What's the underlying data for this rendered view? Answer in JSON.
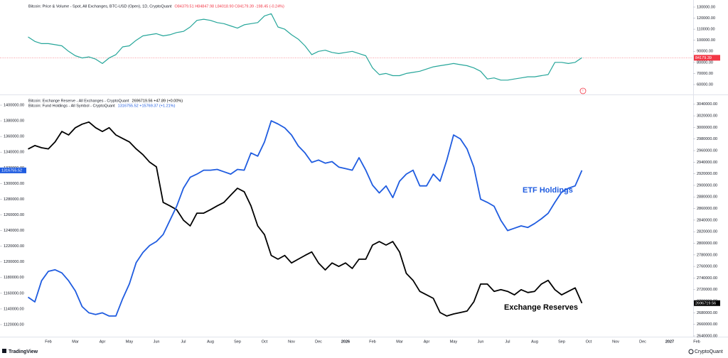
{
  "chart_data": [
    {
      "type": "line",
      "title": "Bitcoin: Price & Volume - Spot, All Exchanges, BTC-USD (Open), 1D, CryptoQuant",
      "ohlc": "O84379.51 H84847.98 L84018.90 C84179.39 -198.45 (-0.24%)",
      "color": "#26a69a",
      "last_value": 84179.39,
      "last_color": "#f23645",
      "ylim": [
        51650,
        133200
      ],
      "yticks": [
        {
          "value": 60000,
          "label": "60000.00"
        },
        {
          "value": 70000,
          "label": "70000.00"
        },
        {
          "value": 80000,
          "label": "80000.00"
        },
        {
          "value": 90000,
          "label": "90000.00"
        },
        {
          "value": 100000,
          "label": "100000.00"
        },
        {
          "value": 110000,
          "label": "110000.00"
        },
        {
          "value": 120000,
          "label": "120000.00"
        },
        {
          "value": 130000,
          "label": "130000.00"
        }
      ],
      "values": [
        103000,
        99000,
        97000,
        97000,
        96000,
        95000,
        90000,
        86000,
        84000,
        85000,
        83000,
        79000,
        84000,
        87000,
        94000,
        95000,
        100000,
        104000,
        105000,
        106000,
        104000,
        105000,
        107000,
        108000,
        112000,
        118000,
        119000,
        118000,
        116000,
        115000,
        113000,
        111000,
        114000,
        115000,
        116000,
        122000,
        124000,
        112000,
        110000,
        105000,
        101000,
        95000,
        87000,
        90000,
        91000,
        89000,
        88000,
        89000,
        90000,
        88000,
        86000,
        75000,
        69000,
        70000,
        68000,
        68000,
        70000,
        71000,
        72000,
        74000,
        76000,
        77000,
        78000,
        79000,
        78000,
        77000,
        75000,
        72000,
        65000,
        66000,
        64000,
        64000,
        65000,
        66000,
        67000,
        67000,
        68000,
        69000,
        80000,
        80000,
        79000,
        80000,
        84179.39,
        null,
        null,
        null,
        null,
        null,
        null,
        null,
        null,
        null,
        null,
        null,
        null,
        null,
        null,
        null,
        null,
        null
      ]
    },
    {
      "type": "line",
      "categories": [
        null,
        null,
        null,
        "Feb",
        null,
        null,
        null,
        "Mar",
        null,
        null,
        null,
        "Apr",
        null,
        null,
        null,
        "May",
        null,
        null,
        null,
        "Jun",
        null,
        null,
        null,
        "Jul",
        null,
        null,
        null,
        "Aug",
        null,
        null,
        null,
        "Sep",
        null,
        null,
        null,
        "Oct",
        null,
        null,
        null,
        "Nov",
        null,
        null,
        null,
        "Dec",
        null,
        null,
        null,
        "2026",
        null,
        null,
        null,
        "Feb",
        null,
        null,
        null,
        "Mar",
        null,
        null,
        null,
        "Apr",
        null,
        null,
        null,
        "May",
        null,
        null,
        null,
        "Jun",
        null,
        null,
        null,
        "Jul",
        null,
        null,
        null,
        "Aug",
        null,
        null,
        null,
        "Sep",
        null,
        null,
        null,
        "Oct",
        null,
        null,
        null,
        "Nov",
        null,
        null,
        null,
        "Dec",
        null,
        null,
        null,
        "2027",
        null,
        null,
        null,
        "Feb"
      ],
      "ylim": [
        1105500,
        1410000
      ],
      "yticks": [
        {
          "value": 1120000,
          "label": "1120000.00"
        },
        {
          "value": 1140000,
          "label": "1140000.00"
        },
        {
          "value": 1160000,
          "label": "1160000.00"
        },
        {
          "value": 1180000,
          "label": "1180000.00"
        },
        {
          "value": 1200000,
          "label": "1200000.00"
        },
        {
          "value": 1220000,
          "label": "1220000.00"
        },
        {
          "value": 1240000,
          "label": "1240000.00"
        },
        {
          "value": 1260000,
          "label": "1260000.00"
        },
        {
          "value": 1280000,
          "label": "1280000.00"
        },
        {
          "value": 1300000,
          "label": "1300000.00"
        },
        {
          "value": 1320000,
          "label": "1320000.00"
        },
        {
          "value": 1340000,
          "label": "1340000.00"
        },
        {
          "value": 1360000,
          "label": "1360000.00"
        },
        {
          "value": 1380000,
          "label": "1380000.00"
        },
        {
          "value": 1400000,
          "label": "1400000.00"
        }
      ],
      "y2lim": [
        2640000,
        3052000
      ],
      "y2ticks": [
        {
          "value": 2640000,
          "label": "2640000.00"
        },
        {
          "value": 2660000,
          "label": "2660000.00"
        },
        {
          "value": 2680000,
          "label": "2680000.00"
        },
        {
          "value": 2700000,
          "label": "2700000.00"
        },
        {
          "value": 2720000,
          "label": "2720000.00"
        },
        {
          "value": 2740000,
          "label": "2740000.00"
        },
        {
          "value": 2760000,
          "label": "2760000.00"
        },
        {
          "value": 2780000,
          "label": "2780000.00"
        },
        {
          "value": 2800000,
          "label": "2800000.00"
        },
        {
          "value": 2820000,
          "label": "2820000.00"
        },
        {
          "value": 2840000,
          "label": "2840000.00"
        },
        {
          "value": 2860000,
          "label": "2860000.00"
        },
        {
          "value": 2880000,
          "label": "2880000.00"
        },
        {
          "value": 2900000,
          "label": "2900000.00"
        },
        {
          "value": 2920000,
          "label": "2920000.00"
        },
        {
          "value": 2940000,
          "label": "2940000.00"
        },
        {
          "value": 2960000,
          "label": "2960000.00"
        },
        {
          "value": 2980000,
          "label": "2980000.00"
        },
        {
          "value": 3000000,
          "label": "3000000.00"
        },
        {
          "value": 3020000,
          "label": "3020000.00"
        },
        {
          "value": 3040000,
          "label": "3040000.00"
        }
      ],
      "annotations": [
        "ETF Holdings",
        "Exchange Reserves"
      ],
      "series": [
        {
          "name": "Bitcoin: Exchange Reserve - All Exchanges - CryptoQuant",
          "legend_value": "2696719.56 +47.89 (+0.00%)",
          "color": "#000000",
          "axis": "y2",
          "last_value": 2696719.56,
          "values": [
            2962700,
            2968800,
            2965000,
            2963000,
            2975000,
            2993000,
            2987000,
            2999500,
            3005600,
            3009300,
            2999500,
            2993000,
            2999500,
            2987000,
            2981000,
            2975000,
            2963000,
            2953000,
            2940000,
            2932000,
            2870700,
            2864600,
            2858000,
            2840000,
            2830000,
            2852000,
            2852000,
            2858000,
            2864600,
            2870700,
            2883000,
            2895000,
            2889000,
            2864600,
            2830000,
            2815000,
            2779000,
            2772500,
            2779000,
            2766000,
            2772500,
            2779000,
            2785000,
            2766000,
            2754000,
            2766000,
            2760000,
            2766000,
            2756600,
            2772500,
            2772500,
            2797000,
            2803000,
            2797000,
            2803000,
            2785000,
            2748000,
            2736000,
            2717000,
            2711000,
            2705000,
            2680500,
            2674400,
            2678000,
            2680500,
            2683000,
            2699000,
            2729600,
            2729600,
            2717000,
            2720000,
            2717000,
            2711000,
            2720000,
            2715000,
            2717000,
            2729600,
            2736000,
            2720000,
            2711000,
            2717000,
            2723000,
            2696719.56,
            null,
            null,
            null,
            null,
            null,
            null,
            null,
            null,
            null,
            null,
            null,
            null,
            null,
            null,
            null,
            null,
            null
          ]
        },
        {
          "name": "Bitcoin: Fund Holdings - All Symbol - CryptoQuant",
          "legend_value": "1316755.52 +15769.37 (+1.21%)",
          "color": "#1f5ce0",
          "axis": "y",
          "last_value": 1316755.52,
          "values": [
            1155000,
            1149000,
            1176000,
            1188000,
            1190000,
            1186000,
            1176000,
            1163000,
            1143000,
            1135000,
            1133000,
            1135000,
            1131000,
            1131000,
            1153000,
            1172000,
            1199000,
            1212000,
            1221000,
            1226000,
            1235000,
            1253000,
            1271000,
            1294000,
            1308000,
            1312000,
            1317000,
            1317000,
            1318000,
            1315000,
            1312000,
            1318000,
            1317000,
            1339000,
            1335000,
            1353000,
            1380000,
            1376000,
            1371000,
            1362000,
            1348000,
            1339000,
            1327000,
            1330000,
            1326000,
            1328000,
            1321000,
            1319000,
            1317000,
            1333000,
            1317000,
            1298000,
            1288000,
            1297000,
            1282000,
            1303000,
            1312000,
            1317000,
            1297000,
            1297000,
            1312000,
            1303000,
            1330000,
            1362000,
            1357000,
            1344000,
            1321000,
            1280000,
            1276000,
            1271000,
            1253000,
            1240000,
            1243000,
            1246000,
            1244000,
            1249000,
            1255000,
            1262000,
            1276000,
            1289000,
            1294000,
            1297000,
            1316755.52,
            null,
            null,
            null,
            null,
            null,
            null,
            null,
            null,
            null,
            null,
            null,
            null,
            null,
            null,
            null,
            null,
            null
          ]
        }
      ]
    }
  ],
  "footer": {
    "left": "TradingView",
    "right": "CryptoQuant"
  }
}
